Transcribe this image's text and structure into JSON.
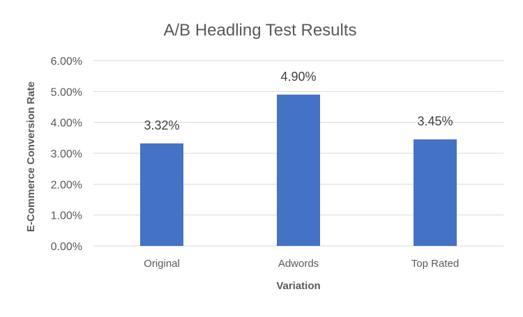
{
  "chart_data": {
    "type": "bar",
    "title": "A/B Headling Test Results",
    "xlabel": "Variation",
    "ylabel": "E-Commerce Conversion Rate",
    "categories": [
      "Original",
      "Adwords",
      "Top Rated"
    ],
    "values": [
      3.32,
      4.9,
      3.45
    ],
    "data_labels": [
      "3.32%",
      "4.90%",
      "3.45%"
    ],
    "ylim": [
      0,
      6
    ],
    "y_ticks": [
      0,
      1,
      2,
      3,
      4,
      5,
      6
    ],
    "y_tick_labels": [
      "0.00%",
      "1.00%",
      "2.00%",
      "3.00%",
      "4.00%",
      "5.00%",
      "6.00%"
    ],
    "grid": true,
    "legend": "none",
    "bar_color": "#4472C4",
    "grid_color": "#D9D9D9",
    "text_color": "#595959"
  }
}
